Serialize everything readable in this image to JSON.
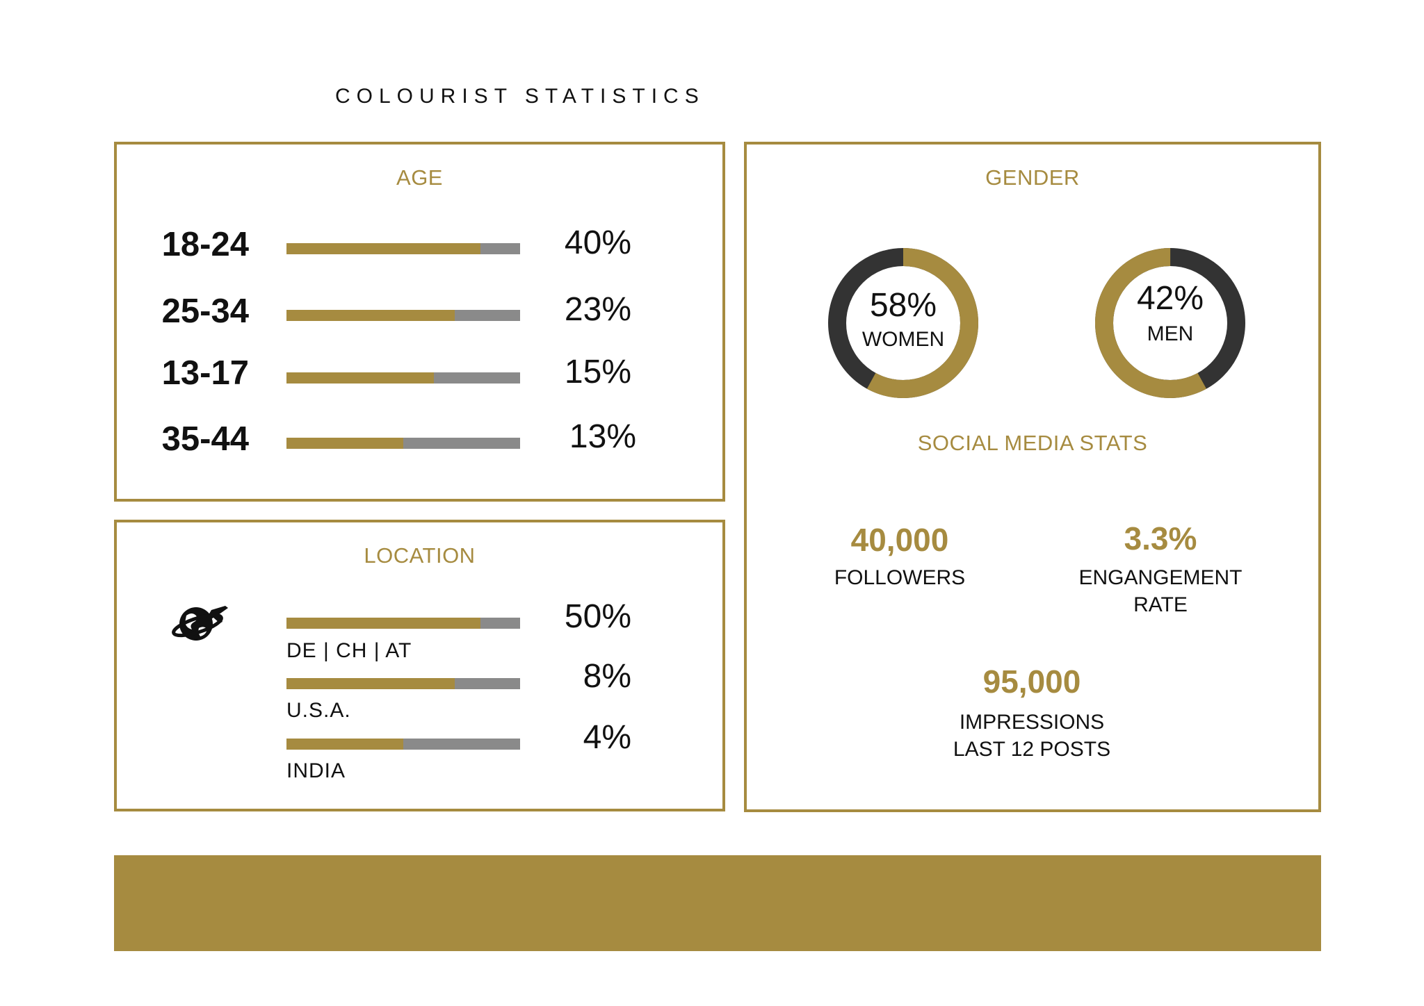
{
  "title": "COLOURIST STATISTICS",
  "colors": {
    "gold": "#a68b40",
    "dark": "#333333",
    "grey": "#8a8a8a"
  },
  "age": {
    "heading": "AGE",
    "rows": [
      {
        "label": "18-24",
        "value_label": "40%",
        "fill": 0.83
      },
      {
        "label": "25-34",
        "value_label": "23%",
        "fill": 0.72
      },
      {
        "label": "13-17",
        "value_label": "15%",
        "fill": 0.63
      },
      {
        "label": "35-44",
        "value_label": "13%",
        "fill": 0.5
      }
    ]
  },
  "location": {
    "heading": "LOCATION",
    "icon": "globe-plane-icon",
    "rows": [
      {
        "label": "DE  |  CH  |  AT",
        "value_label": "50%",
        "fill": 0.83
      },
      {
        "label": "U.S.A.",
        "value_label": "8%",
        "fill": 0.72
      },
      {
        "label": "INDIA",
        "value_label": "4%",
        "fill": 0.5
      }
    ]
  },
  "gender": {
    "heading": "GENDER",
    "women": {
      "value_label": "58%",
      "label": "WOMEN",
      "share": 0.58
    },
    "men": {
      "value_label": "42%",
      "label": "MEN",
      "share": 0.42
    }
  },
  "social": {
    "heading": "SOCIAL MEDIA STATS",
    "followers": {
      "value": "40,000",
      "label_line1": "FOLLOWERS"
    },
    "engagement": {
      "value": "3.3%",
      "label_line1": "ENGANGEMENT",
      "label_line2": "RATE"
    },
    "impressions": {
      "value": "95,000",
      "label_line1": "IMPRESSIONS",
      "label_line2": "LAST 12 POSTS"
    }
  },
  "chart_data": [
    {
      "type": "bar",
      "title": "AGE",
      "categories": [
        "18-24",
        "25-34",
        "13-17",
        "35-44"
      ],
      "values": [
        40,
        23,
        15,
        13
      ],
      "unit": "%"
    },
    {
      "type": "bar",
      "title": "LOCATION",
      "categories": [
        "DE | CH | AT",
        "U.S.A.",
        "INDIA"
      ],
      "values": [
        50,
        8,
        4
      ],
      "unit": "%"
    },
    {
      "type": "pie",
      "title": "GENDER",
      "categories": [
        "WOMEN",
        "MEN"
      ],
      "values": [
        58,
        42
      ],
      "unit": "%"
    }
  ]
}
